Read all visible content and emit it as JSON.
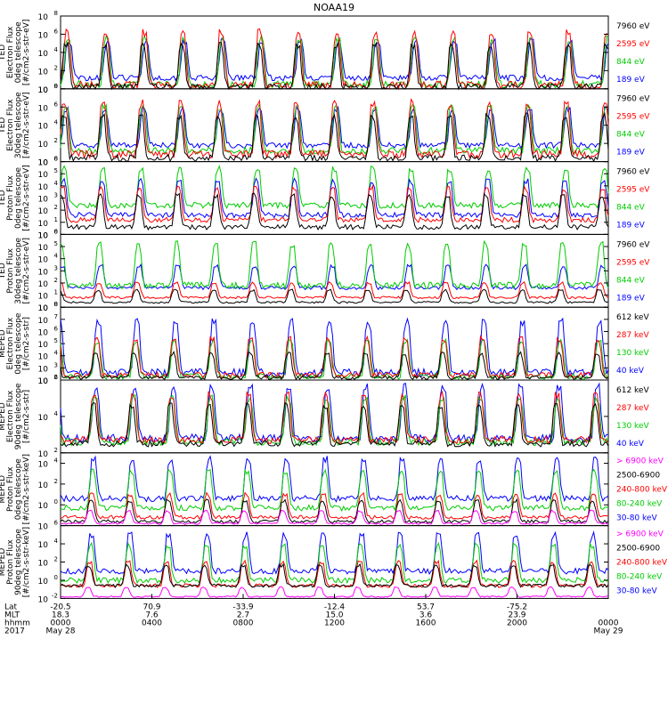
{
  "chart_data": {
    "type": "line",
    "title": "NOAA19",
    "panels": [
      {
        "ylabel": [
          "TED",
          "Electron Flux",
          "0deg telescope",
          "[#/cm2-s-str-eV]"
        ],
        "yticks": [
          {
            "label": "10",
            "exp": "0"
          },
          {
            "label": "10",
            "exp": "2"
          },
          {
            "label": "10",
            "exp": "4"
          },
          {
            "label": "10",
            "exp": "6"
          },
          {
            "label": "10",
            "exp": "8"
          }
        ],
        "ylim": [
          0,
          8
        ],
        "legend": [
          {
            "label": "7960 eV",
            "color": "#000000"
          },
          {
            "label": "2595 eV",
            "color": "#ff0000"
          },
          {
            "label": "844 eV",
            "color": "#00cc00"
          },
          {
            "label": "189 eV",
            "color": "#0000ff"
          }
        ],
        "series": [
          {
            "name": "189 eV",
            "color": "#0000ff",
            "base": 1.2,
            "peak": 5.2
          },
          {
            "name": "844 eV",
            "color": "#00cc00",
            "base": 0.5,
            "peak": 5.5
          },
          {
            "name": "2595 eV",
            "color": "#ff0000",
            "base": 0.4,
            "peak": 6.2
          },
          {
            "name": "7960 eV",
            "color": "#000000",
            "base": 0.2,
            "peak": 4.8
          }
        ]
      },
      {
        "ylabel": [
          "TED",
          "Electron Flux",
          "30deg telescope",
          "[#/cm2-s-str-eV]"
        ],
        "yticks": [
          {
            "label": "10",
            "exp": "0"
          },
          {
            "label": "10",
            "exp": "2"
          },
          {
            "label": "10",
            "exp": "4"
          },
          {
            "label": "10",
            "exp": "6"
          },
          {
            "label": "10",
            "exp": "8"
          }
        ],
        "ylim": [
          0,
          8
        ],
        "legend": [
          {
            "label": "7960 eV",
            "color": "#000000"
          },
          {
            "label": "2595 eV",
            "color": "#ff0000"
          },
          {
            "label": "844 eV",
            "color": "#00cc00"
          },
          {
            "label": "189 eV",
            "color": "#0000ff"
          }
        ],
        "series": [
          {
            "name": "189 eV",
            "color": "#0000ff",
            "base": 1.8,
            "peak": 5.8
          },
          {
            "name": "844 eV",
            "color": "#00cc00",
            "base": 1.2,
            "peak": 6.0
          },
          {
            "name": "2595 eV",
            "color": "#ff0000",
            "base": 0.8,
            "peak": 6.4
          },
          {
            "name": "7960 eV",
            "color": "#000000",
            "base": 0.4,
            "peak": 5.0
          }
        ]
      },
      {
        "ylabel": [
          "TED",
          "Proton Flux",
          "0deg telescope",
          "[#/cm2-s-str-eV]"
        ],
        "yticks": [
          {
            "label": "10",
            "exp": "0"
          },
          {
            "label": "10",
            "exp": "1"
          },
          {
            "label": "10",
            "exp": "2"
          },
          {
            "label": "10",
            "exp": "3"
          },
          {
            "label": "10",
            "exp": "4"
          },
          {
            "label": "10",
            "exp": "5"
          },
          {
            "label": "10",
            "exp": "6"
          }
        ],
        "ylim": [
          0,
          6
        ],
        "legend": [
          {
            "label": "7960 eV",
            "color": "#000000"
          },
          {
            "label": "2595 eV",
            "color": "#ff0000"
          },
          {
            "label": "844 eV",
            "color": "#00cc00"
          },
          {
            "label": "189 eV",
            "color": "#0000ff"
          }
        ],
        "series": [
          {
            "name": "844 eV",
            "color": "#00cc00",
            "base": 2.4,
            "peak": 5.4
          },
          {
            "name": "189 eV",
            "color": "#0000ff",
            "base": 1.6,
            "peak": 4.4
          },
          {
            "name": "2595 eV",
            "color": "#ff0000",
            "base": 1.2,
            "peak": 3.8
          },
          {
            "name": "7960 eV",
            "color": "#000000",
            "base": 0.6,
            "peak": 3.2
          }
        ]
      },
      {
        "ylabel": [
          "TED",
          "Proton Flux",
          "30deg telescope",
          "[#/cm2-s-str-eV]"
        ],
        "yticks": [
          {
            "label": "10",
            "exp": "0"
          },
          {
            "label": "10",
            "exp": "1"
          },
          {
            "label": "10",
            "exp": "2"
          },
          {
            "label": "10",
            "exp": "3"
          },
          {
            "label": "10",
            "exp": "4"
          },
          {
            "label": "10",
            "exp": "5"
          },
          {
            "label": "10",
            "exp": "6"
          }
        ],
        "ylim": [
          0,
          6
        ],
        "legend": [
          {
            "label": "7960 eV",
            "color": "#000000"
          },
          {
            "label": "2595 eV",
            "color": "#ff0000"
          },
          {
            "label": "844 eV",
            "color": "#00cc00"
          },
          {
            "label": "189 eV",
            "color": "#0000ff"
          }
        ],
        "series": [
          {
            "name": "189 eV",
            "color": "#0000ff",
            "base": 1.6,
            "peak": 3.4
          },
          {
            "name": "844 eV",
            "color": "#00cc00",
            "base": 1.8,
            "peak": 5.2
          },
          {
            "name": "2595 eV",
            "color": "#ff0000",
            "base": 0.8,
            "peak": 2.0
          },
          {
            "name": "7960 eV",
            "color": "#000000",
            "base": 0.4,
            "peak": 1.4
          }
        ]
      },
      {
        "ylabel": [
          "MEPED",
          "Electron Flux",
          "0deg telescope",
          "[#/cm2-s-str]"
        ],
        "yticks": [
          {
            "label": "10",
            "exp": "2"
          },
          {
            "label": "10",
            "exp": "3"
          },
          {
            "label": "10",
            "exp": "4"
          },
          {
            "label": "10",
            "exp": "5"
          },
          {
            "label": "10",
            "exp": "6"
          },
          {
            "label": "10",
            "exp": "7"
          },
          {
            "label": "10",
            "exp": "8"
          }
        ],
        "ylim": [
          2,
          8
        ],
        "legend": [
          {
            "label": "612 keV",
            "color": "#000000"
          },
          {
            "label": "287 keV",
            "color": "#ff0000"
          },
          {
            "label": "130 keV",
            "color": "#00cc00"
          },
          {
            "label": "40 keV",
            "color": "#0000ff"
          }
        ],
        "series": [
          {
            "name": "40 keV",
            "color": "#0000ff",
            "base": 2.6,
            "peak": 6.8
          },
          {
            "name": "130 keV",
            "color": "#00cc00",
            "base": 2.3,
            "peak": 5.2
          },
          {
            "name": "287 keV",
            "color": "#ff0000",
            "base": 2.4,
            "peak": 5.4
          },
          {
            "name": "612 keV",
            "color": "#000000",
            "base": 2.2,
            "peak": 4.2
          }
        ]
      },
      {
        "ylabel": [
          "MEPED",
          "Electron Flux",
          "90deg telescope",
          "[#/cm2-s-str]"
        ],
        "yticks": [
          {
            "label": "10",
            "exp": "2"
          },
          {
            "label": "10",
            "exp": "4"
          },
          {
            "label": "10",
            "exp": "6"
          }
        ],
        "ylim": [
          2,
          6
        ],
        "legend": [
          {
            "label": "612 keV",
            "color": "#000000"
          },
          {
            "label": "287 keV",
            "color": "#ff0000"
          },
          {
            "label": "130 keV",
            "color": "#00cc00"
          },
          {
            "label": "40 keV",
            "color": "#0000ff"
          }
        ],
        "series": [
          {
            "name": "40 keV",
            "color": "#0000ff",
            "base": 2.8,
            "peak": 5.6
          },
          {
            "name": "130 keV",
            "color": "#00cc00",
            "base": 2.6,
            "peak": 5.0
          },
          {
            "name": "287 keV",
            "color": "#ff0000",
            "base": 2.7,
            "peak": 5.2
          },
          {
            "name": "612 keV",
            "color": "#000000",
            "base": 2.5,
            "peak": 4.6
          }
        ]
      },
      {
        "ylabel": [
          "MEPED",
          "Proton Flux",
          "0deg telescope",
          "[#/cm2-s-str-keV]"
        ],
        "yticks": [
          {
            "label": "10",
            "exp": "0"
          },
          {
            "label": "10",
            "exp": "2"
          },
          {
            "label": "10",
            "exp": "4"
          }
        ],
        "ylim": [
          -2,
          5
        ],
        "legend": [
          {
            "label": "> 6900 keV",
            "color": "#ff00ff"
          },
          {
            "label": "2500-6900",
            "color": "#000000"
          },
          {
            "label": "240-800 keV",
            "color": "#ff0000"
          },
          {
            "label": "80-240 keV",
            "color": "#00cc00"
          },
          {
            "label": "30-80 keV",
            "color": "#0000ff"
          }
        ],
        "series": [
          {
            "name": "30-80 keV",
            "color": "#0000ff",
            "base": 0.6,
            "peak": 4.4
          },
          {
            "name": "80-240 keV",
            "color": "#00cc00",
            "base": -0.3,
            "peak": 3.2
          },
          {
            "name": "240-800 keV",
            "color": "#ff0000",
            "base": -1.2,
            "peak": 1.0
          },
          {
            "name": "2500-6900",
            "color": "#000000",
            "base": -1.6,
            "peak": 0.4
          },
          {
            "name": "> 6900 keV",
            "color": "#ff00ff",
            "base": -1.8,
            "peak": -0.6
          }
        ]
      },
      {
        "ylabel": [
          "MEPED",
          "Proton Flux",
          "90deg telescope",
          "[#/cm2-s-str-keV]"
        ],
        "yticks": [
          {
            "label": "10",
            "exp": "-2"
          },
          {
            "label": "10",
            "exp": "0"
          },
          {
            "label": "10",
            "exp": "2"
          },
          {
            "label": "10",
            "exp": "4"
          },
          {
            "label": "10",
            "exp": "6"
          }
        ],
        "ylim": [
          -2,
          6
        ],
        "legend": [
          {
            "label": "> 6900 keV",
            "color": "#ff00ff"
          },
          {
            "label": "2500-6900",
            "color": "#000000"
          },
          {
            "label": "240-800 keV",
            "color": "#ff0000"
          },
          {
            "label": "80-240 keV",
            "color": "#00cc00"
          },
          {
            "label": "30-80 keV",
            "color": "#0000ff"
          }
        ],
        "series": [
          {
            "name": "30-80 keV",
            "color": "#0000ff",
            "base": 1.0,
            "peak": 5.0
          },
          {
            "name": "80-240 keV",
            "color": "#00cc00",
            "base": 0.0,
            "peak": 3.8
          },
          {
            "name": "240-800 keV",
            "color": "#ff0000",
            "base": -0.6,
            "peak": 2.0
          },
          {
            "name": "2500-6900",
            "color": "#000000",
            "base": -0.6,
            "peak": 1.6
          },
          {
            "name": "> 6900 keV",
            "color": "#ff00ff",
            "base": -1.8,
            "peak": -0.8
          }
        ]
      }
    ],
    "xaxis": {
      "row_labels": [
        "Lat",
        "MLT",
        "hhmm",
        "2017"
      ],
      "xlim": [
        0,
        24
      ],
      "ticks": [
        {
          "hour": 0,
          "lat": "-20.5",
          "mlt": "18.3",
          "hhmm": "0000",
          "date": "May 28"
        },
        {
          "hour": 4,
          "lat": "70.9",
          "mlt": "7.6",
          "hhmm": "0400",
          "date": ""
        },
        {
          "hour": 8,
          "lat": "-33.9",
          "mlt": "2.7",
          "hhmm": "0800",
          "date": ""
        },
        {
          "hour": 12,
          "lat": "-12.4",
          "mlt": "15.0",
          "hhmm": "1200",
          "date": ""
        },
        {
          "hour": 16,
          "lat": "53.7",
          "mlt": "3.6",
          "hhmm": "1600",
          "date": ""
        },
        {
          "hour": 20,
          "lat": "-75.2",
          "mlt": "23.9",
          "hhmm": "2000",
          "date": ""
        },
        {
          "hour": 24,
          "lat": "",
          "mlt": "",
          "hhmm": "0000",
          "date": "May 29"
        }
      ]
    }
  }
}
